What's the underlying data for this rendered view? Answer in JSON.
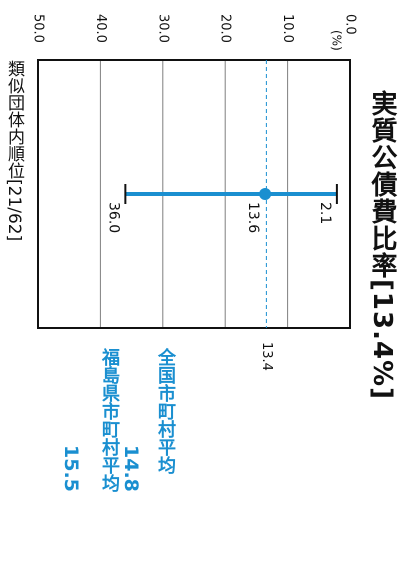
{
  "title": "実質公債費比率[13.4%]",
  "similar_rank": "類似団体内順位[21/62]",
  "national_average": {
    "label": "全国市町村平均",
    "value": "14.8"
  },
  "prefecture_average": {
    "label": "福島県市町村平均",
    "value": "15.5"
  },
  "colors": {
    "accent": "#1a8fd0",
    "grid": "#7f7f7f",
    "border": "#111111",
    "text": "#111111"
  },
  "chart_data": {
    "type": "range",
    "orientation": "rotated-90",
    "unit": "(%)",
    "axis_range": [
      0,
      50
    ],
    "ticks": [
      "0.0",
      "10.0",
      "20.0",
      "30.0",
      "40.0",
      "50.0"
    ],
    "tick_values": [
      0,
      10,
      20,
      30,
      40,
      50
    ],
    "min_value": 2.1,
    "min_label": "2.1",
    "max_value": 36.0,
    "max_label": "36.0",
    "mean_value": 13.6,
    "mean_label": "13.6",
    "current_value": 13.4,
    "current_label": "13.4"
  }
}
